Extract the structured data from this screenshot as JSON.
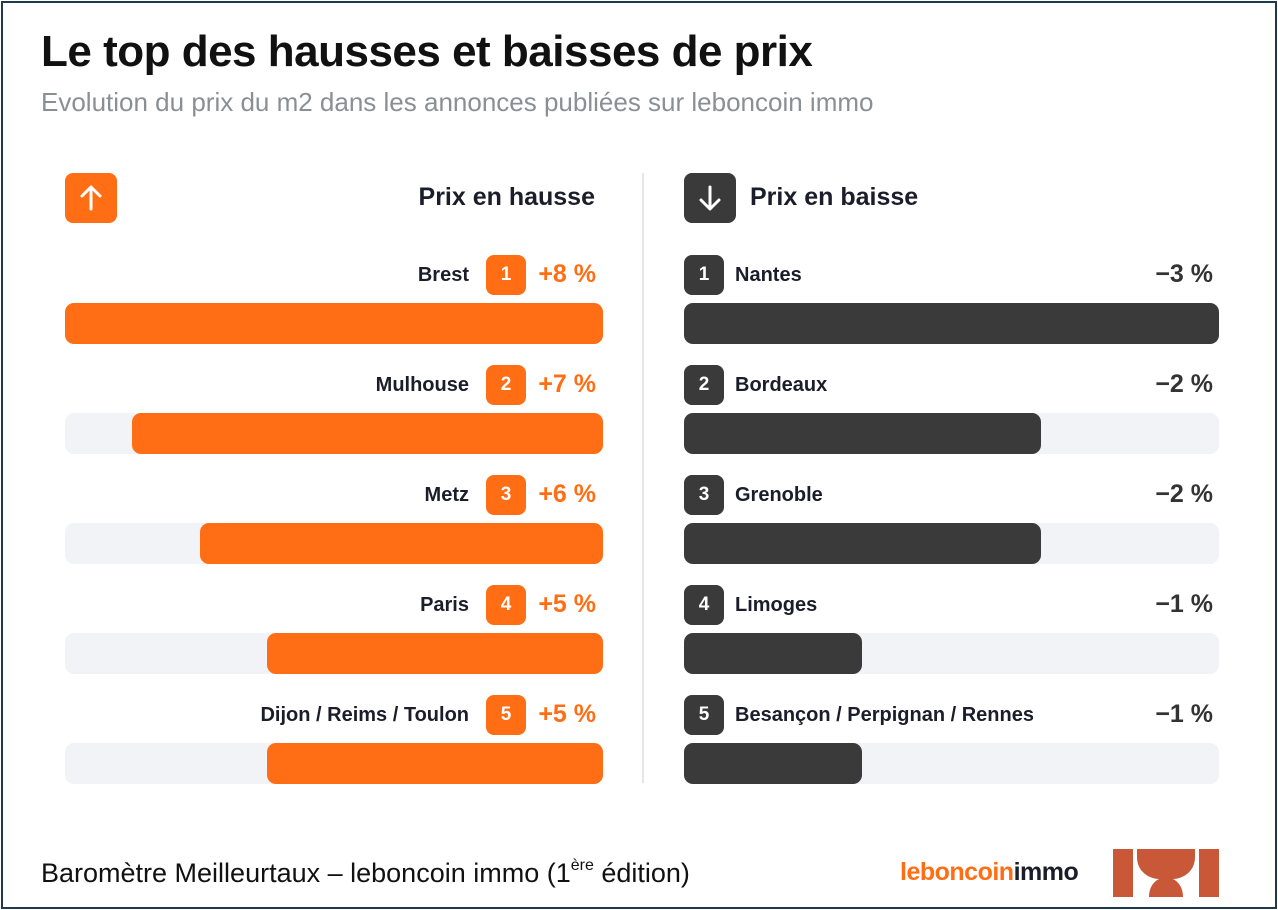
{
  "title": "Le top des hausses et baisses de prix",
  "subtitle": "Evolution du prix du m2 dans les annonces publiées sur leboncoin immo",
  "left_header": "Prix en hausse",
  "right_header": "Prix en baisse",
  "icons": {
    "up": "arrow-up-icon",
    "down": "arrow-down-icon"
  },
  "colors": {
    "hausse": "#ff6e14",
    "baisse": "#3a3a3a",
    "track": "#f1f3f6"
  },
  "footer": {
    "main": "Baromètre Meilleurtaux – leboncoin immo (1",
    "sup": "ère",
    "tail": " édition)"
  },
  "brand": {
    "part1": "leboncoin",
    "part2": "immo"
  },
  "chart_data": [
    {
      "type": "bar",
      "title": "Prix en hausse",
      "categories": [
        "Brest",
        "Mulhouse",
        "Metz",
        "Paris",
        "Dijon / Reims / Toulon"
      ],
      "ranks": [
        "1",
        "2",
        "3",
        "4",
        "5"
      ],
      "values": [
        8,
        7,
        6,
        5,
        5
      ],
      "labels": [
        "+8 %",
        "+7 %",
        "+6 %",
        "+5 %",
        "+5 %"
      ],
      "xlim": [
        0,
        8
      ]
    },
    {
      "type": "bar",
      "title": "Prix en baisse",
      "categories": [
        "Nantes",
        "Bordeaux",
        "Grenoble",
        "Limoges",
        "Besançon / Perpignan / Rennes"
      ],
      "ranks": [
        "1",
        "2",
        "3",
        "4",
        "5"
      ],
      "values": [
        -3,
        -2,
        -2,
        -1,
        -1
      ],
      "labels": [
        "−3 %",
        "−2 %",
        "−2 %",
        "−1 %",
        "−1 %"
      ],
      "xlim": [
        -3,
        0
      ]
    }
  ]
}
